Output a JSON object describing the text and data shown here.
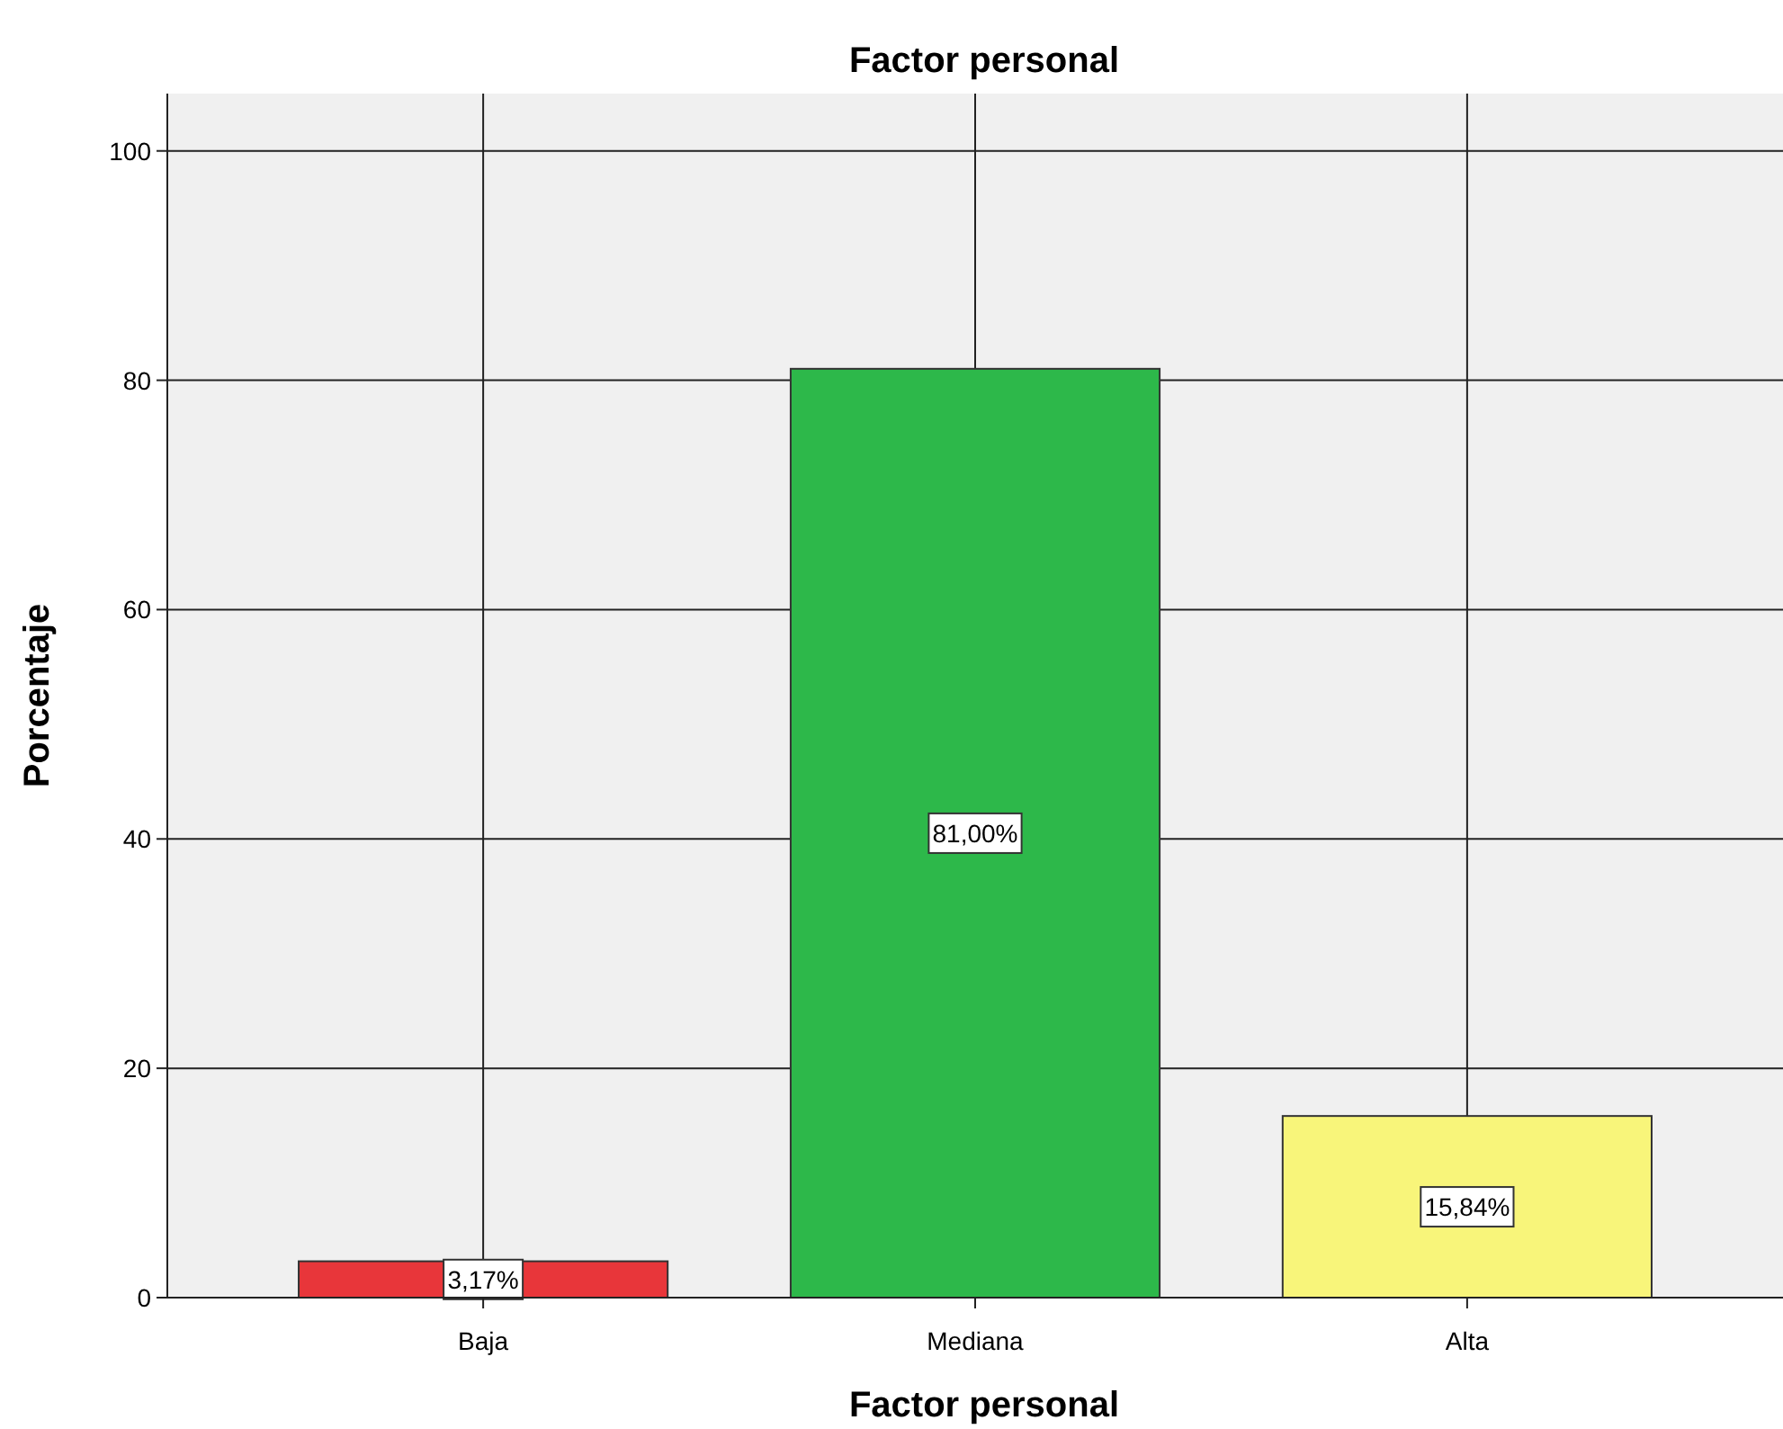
{
  "chart_data": {
    "type": "bar",
    "title": "Factor personal",
    "xlabel": "Factor personal",
    "ylabel": "Porcentaje",
    "categories": [
      "Baja",
      "Mediana",
      "Alta"
    ],
    "values": [
      3.17,
      81.0,
      15.84
    ],
    "colors": [
      "#e8363a",
      "#2db84a",
      "#f8f57a"
    ],
    "value_labels": [
      "3,17%",
      "81,00%",
      "15,84%"
    ],
    "ylim": [
      0,
      105
    ],
    "yticks": [
      0,
      20,
      40,
      60,
      80,
      100
    ],
    "grid": true
  }
}
